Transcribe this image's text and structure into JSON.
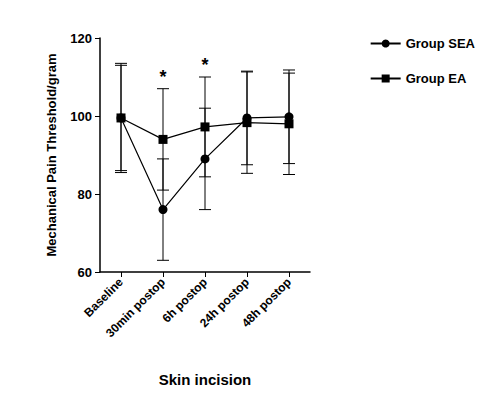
{
  "chart_data": {
    "type": "line",
    "x_label": "Skin incision",
    "y_label": "Mechanical Pain Threshold/gram",
    "categories": [
      "Baseline",
      "30min postop",
      "6h postop",
      "24h postop",
      "48h postop"
    ],
    "series": [
      {
        "name": "Group SEA",
        "color": "#000000",
        "marker": "circle",
        "values": [
          99.5,
          76,
          89,
          99.5,
          99.8
        ],
        "error": [
          13.5,
          13,
          13,
          12,
          12
        ]
      },
      {
        "name": "Group EA",
        "color": "#000000",
        "marker": "square",
        "values": [
          99.5,
          94,
          97.2,
          98.3,
          98
        ],
        "error": [
          14,
          13,
          12.8,
          13,
          13
        ]
      }
    ],
    "annotations": [
      {
        "text": "*",
        "x": "30min postop",
        "y": 110
      },
      {
        "text": "*",
        "x": "6h postop",
        "y": 113
      }
    ],
    "ylim": [
      60,
      120
    ],
    "yticks": [
      60,
      80,
      100,
      120
    ],
    "grid": false,
    "legend": "right"
  }
}
